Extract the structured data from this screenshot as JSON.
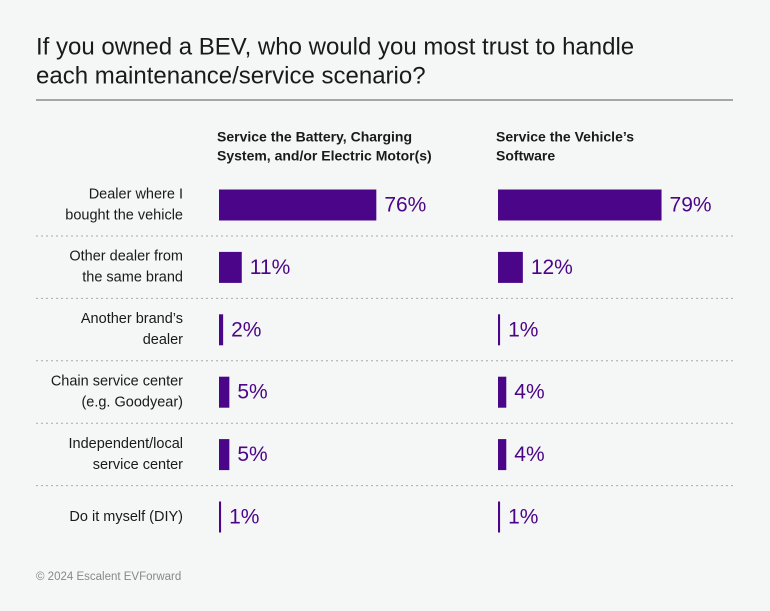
{
  "chart_data": {
    "type": "bar",
    "title": [
      "If you owned a BEV, who would you most trust to handle",
      "each maintenance/service scenario?"
    ],
    "footer": "© 2024 Escalent EVForward",
    "categories": [
      [
        "Dealer where I",
        "bought the vehicle"
      ],
      [
        "Other dealer from",
        "the same brand"
      ],
      [
        "Another brand’s",
        "dealer"
      ],
      [
        "Chain service center",
        "(e.g. Goodyear)"
      ],
      [
        "Independent/local",
        "service center"
      ],
      [
        "Do it myself (DIY)"
      ]
    ],
    "xlim": [
      0,
      100
    ],
    "series": [
      {
        "name": [
          "Service the Battery, Charging",
          "System, and/or Electric Motor(s)"
        ],
        "color": "#4b0588",
        "values": [
          76,
          11,
          2,
          5,
          5,
          1
        ],
        "value_labels": [
          "76%",
          "11%",
          "2%",
          "5%",
          "5%",
          "1%"
        ]
      },
      {
        "name": [
          "Service the Vehicle’s",
          "Software"
        ],
        "color": "#4b0588",
        "values": [
          79,
          12,
          1,
          4,
          4,
          1
        ],
        "value_labels": [
          "79%",
          "12%",
          "1%",
          "4%",
          "4%",
          "1%"
        ]
      }
    ]
  }
}
